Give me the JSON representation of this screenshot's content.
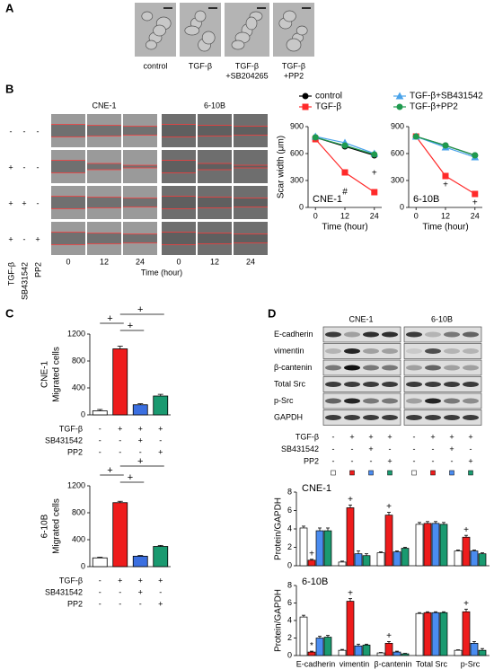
{
  "panel_labels": [
    "A",
    "B",
    "C",
    "D"
  ],
  "panel_a": {
    "labels": [
      [
        "control"
      ],
      [
        "TGF-β"
      ],
      [
        "TGF-β",
        "+SB204265"
      ],
      [
        "TGF-β",
        "+PP2"
      ]
    ]
  },
  "panel_b": {
    "cell_lines": [
      "CNE-1",
      "6-10B"
    ],
    "times": [
      "0",
      "12",
      "24"
    ],
    "time_label": "Time (hour)",
    "treatments": [
      {
        "name": "TGF-β",
        "signs": [
          "-",
          "+",
          "+",
          "+"
        ]
      },
      {
        "name": "SB431542",
        "signs": [
          "-",
          "-",
          "+",
          "-"
        ]
      },
      {
        "name": "PP2",
        "signs": [
          "-",
          "-",
          "-",
          "+"
        ]
      }
    ]
  },
  "panel_d_blot": {
    "cell_lines": [
      "CNE-1",
      "6-10B"
    ],
    "proteins": [
      "E-cadherin",
      "vimentin",
      "β-cantenin",
      "Total Src",
      "p-Src",
      "GAPDH"
    ],
    "treatments": [
      {
        "name": "TGF-β",
        "signs": [
          "-",
          "+",
          "+",
          "+",
          "-",
          "+",
          "+",
          "+"
        ]
      },
      {
        "name": "SB431542",
        "signs": [
          "-",
          "-",
          "+",
          "-",
          "-",
          "-",
          "+",
          "-"
        ]
      },
      {
        "name": "PP2",
        "signs": [
          "-",
          "-",
          "-",
          "+",
          "-",
          "-",
          "-",
          "+"
        ]
      }
    ]
  },
  "chart_data": [
    {
      "type": "line",
      "title": "CNE-1",
      "xlabel": "Time (hour)",
      "ylabel": "Scar width (μm)",
      "x": [
        0,
        12,
        24
      ],
      "xlim": [
        -3,
        27
      ],
      "xticks": [
        0,
        12,
        24
      ],
      "ylim": [
        0,
        900
      ],
      "yticks": [
        0,
        300,
        600,
        900
      ],
      "legend": true,
      "series": [
        {
          "name": "control",
          "color": "#000000",
          "marker": "circle",
          "values": [
            780,
            680,
            580
          ]
        },
        {
          "name": "TGF-β",
          "color": "#ff2a2a",
          "marker": "square",
          "values": [
            760,
            390,
            170
          ]
        },
        {
          "name": "TGF-β+SB431542",
          "color": "#4aa3ea",
          "marker": "triangle",
          "values": [
            790,
            720,
            600
          ]
        },
        {
          "name": "TGF-β+PP2",
          "color": "#1f9a4f",
          "marker": "circle",
          "values": [
            780,
            690,
            590
          ]
        }
      ],
      "annotations": [
        {
          "text": "#",
          "x": 12,
          "y": 170
        },
        {
          "text": "+",
          "x": 24,
          "y": 380
        }
      ]
    },
    {
      "type": "line",
      "title": "6-10B",
      "xlabel": "Time (hour)",
      "x": [
        0,
        12,
        24
      ],
      "xlim": [
        -3,
        27
      ],
      "xticks": [
        0,
        12,
        24
      ],
      "ylim": [
        0,
        900
      ],
      "yticks": [
        0,
        300,
        600,
        900
      ],
      "legend": false,
      "series": [
        {
          "color": "#000000",
          "marker": "circle",
          "values": [
            790,
            690,
            580
          ]
        },
        {
          "color": "#ff2a2a",
          "marker": "square",
          "values": [
            790,
            350,
            150
          ]
        },
        {
          "color": "#4aa3ea",
          "marker": "triangle",
          "values": [
            790,
            670,
            560
          ]
        },
        {
          "color": "#1f9a4f",
          "marker": "circle",
          "values": [
            790,
            690,
            580
          ]
        }
      ],
      "annotations": [
        {
          "text": "+",
          "x": 12,
          "y": 250
        },
        {
          "text": "+",
          "x": 24,
          "y": 50
        }
      ]
    },
    {
      "type": "bar",
      "ylabel": [
        "CNE-1",
        "Migrated cells"
      ],
      "ylim": [
        0,
        1200
      ],
      "yticks": [
        0,
        400,
        800,
        1200
      ],
      "values": [
        60,
        980,
        150,
        280
      ],
      "errors": [
        20,
        40,
        15,
        25
      ],
      "colors": [
        "#ffffff",
        "#ee1c1c",
        "#3b6fe0",
        "#1a9a70"
      ],
      "treatments": [
        {
          "name": "TGF-β",
          "signs": [
            "-",
            "+",
            "+",
            "+"
          ]
        },
        {
          "name": "SB431542",
          "signs": [
            "-",
            "-",
            "+",
            "-"
          ]
        },
        {
          "name": "PP2",
          "signs": [
            "-",
            "-",
            "-",
            "+"
          ]
        }
      ],
      "significance": [
        "+",
        "+",
        "+"
      ]
    },
    {
      "type": "bar",
      "ylabel": [
        "6-10B",
        "Migrated cells"
      ],
      "ylim": [
        0,
        1200
      ],
      "yticks": [
        0,
        400,
        800,
        1200
      ],
      "values": [
        130,
        950,
        155,
        300
      ],
      "errors": [
        10,
        20,
        10,
        15
      ],
      "colors": [
        "#ffffff",
        "#ee1c1c",
        "#3b6fe0",
        "#1a9a70"
      ],
      "treatments": [
        {
          "name": "TGF-β",
          "signs": [
            "-",
            "+",
            "+",
            "+"
          ]
        },
        {
          "name": "SB431542",
          "signs": [
            "-",
            "-",
            "+",
            "-"
          ]
        },
        {
          "name": "PP2",
          "signs": [
            "-",
            "-",
            "-",
            "+"
          ]
        }
      ],
      "significance": [
        "+",
        "+",
        "+"
      ]
    },
    {
      "type": "grouped_bar",
      "title": "CNE-1",
      "ylabel": "Protein/GAPDH",
      "ylim": [
        0,
        8
      ],
      "yticks": [
        0,
        2,
        4,
        6,
        8
      ],
      "series": [
        {
          "color": "#ffffff",
          "values": [
            4.1,
            0.4,
            1.4,
            4.5,
            1.6
          ],
          "errors": [
            0.2,
            0.1,
            0.1,
            0.2,
            0.1
          ]
        },
        {
          "color": "#ee1c1c",
          "values": [
            0.6,
            6.3,
            5.5,
            4.6,
            3.1
          ],
          "errors": [
            0.1,
            0.3,
            0.3,
            0.2,
            0.2
          ]
        },
        {
          "color": "#4a8cf0",
          "values": [
            3.8,
            1.3,
            1.5,
            4.6,
            1.6
          ],
          "errors": [
            0.3,
            0.3,
            0.1,
            0.2,
            0.1
          ]
        },
        {
          "color": "#1a9a70",
          "values": [
            3.8,
            1.1,
            1.9,
            4.5,
            1.3
          ],
          "errors": [
            0.3,
            0.2,
            0.1,
            0.2,
            0.1
          ]
        }
      ],
      "markers": [
        "+",
        "+",
        "+",
        null,
        "+"
      ]
    },
    {
      "type": "grouped_bar",
      "title": "6-10B",
      "ylabel": "Protein/GAPDH",
      "ylim": [
        0,
        8
      ],
      "yticks": [
        0,
        2,
        4,
        6,
        8
      ],
      "categories": [
        "E-cadherin",
        "vimentin",
        "β-cantenin",
        "Total Src",
        "p-Src"
      ],
      "series": [
        {
          "color": "#ffffff",
          "values": [
            4.4,
            0.6,
            0.3,
            4.8,
            0.6
          ],
          "errors": [
            0.2,
            0.1,
            0.05,
            0.1,
            0.05
          ]
        },
        {
          "color": "#ee1c1c",
          "values": [
            0.4,
            6.2,
            1.4,
            4.9,
            5.0
          ],
          "errors": [
            0.1,
            0.3,
            0.2,
            0.1,
            0.3
          ]
        },
        {
          "color": "#4a8cf0",
          "values": [
            2.0,
            1.1,
            0.4,
            4.9,
            1.4
          ],
          "errors": [
            0.2,
            0.2,
            0.1,
            0.1,
            0.2
          ]
        },
        {
          "color": "#1a9a70",
          "values": [
            2.1,
            1.2,
            0.2,
            4.9,
            0.6
          ],
          "errors": [
            0.2,
            0.1,
            0.05,
            0.1,
            0.2
          ]
        }
      ],
      "markers": [
        "*",
        "+",
        "+",
        null,
        "+"
      ]
    }
  ]
}
